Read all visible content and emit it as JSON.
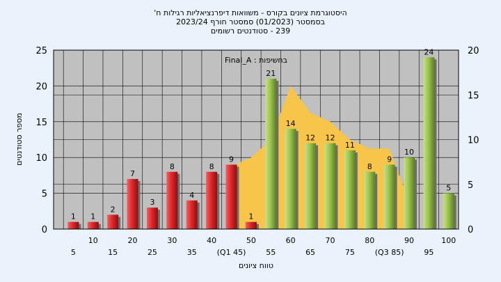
{
  "chart_data": {
    "type": "bar",
    "title_lines": [
      "היסטוגרמת ציונים בקורס - משוואות דיפרנציאליות רגילות ח'",
      "בסמסטר  (01/2023)  סמסטר חורף  2023/24",
      "239 - סטודנטים רשומים"
    ],
    "annotation": "Final_A : בחשיפות",
    "xlabel": "טווח ציונים",
    "ylabel": "מספר סטודנטים",
    "ylim": [
      0,
      25
    ],
    "yticks": [
      0,
      5,
      10,
      15,
      20,
      25
    ],
    "y2lim": [
      0,
      20
    ],
    "y2ticks": [
      0,
      5,
      10,
      15,
      20
    ],
    "grid": true,
    "x_tick_labels": [
      "5",
      "10",
      "15",
      "20",
      "25",
      "30",
      "35",
      "40",
      "(Q1 45)",
      "50",
      "55",
      "60",
      "65",
      "70",
      "75",
      "80",
      "(Q3 85)",
      "90",
      "95",
      "100"
    ],
    "categories": [
      5,
      10,
      15,
      20,
      25,
      30,
      35,
      40,
      45,
      50,
      55,
      60,
      65,
      70,
      75,
      80,
      85,
      90,
      95,
      100
    ],
    "values": [
      1,
      1,
      2,
      7,
      3,
      8,
      4,
      8,
      9,
      1,
      21,
      14,
      12,
      12,
      11,
      8,
      9,
      10,
      24,
      5
    ],
    "value_labels": [
      "1",
      "1",
      "2",
      "7",
      "3",
      "8",
      "4",
      "8",
      "9",
      "1",
      "21",
      "14",
      "12",
      "12",
      "11",
      "8",
      "9",
      "10",
      "24",
      "5"
    ],
    "bar_colors": [
      "red",
      "red",
      "red",
      "red",
      "red",
      "red",
      "red",
      "red",
      "red",
      "red",
      "green",
      "green",
      "green",
      "green",
      "green",
      "green",
      "green",
      "green",
      "green",
      "green"
    ],
    "area": {
      "x": [
        45,
        50,
        55,
        60,
        65,
        70,
        75,
        80,
        85,
        90
      ],
      "y": [
        7,
        8,
        10,
        16,
        13,
        12,
        10,
        9,
        9,
        3
      ],
      "axis": "right"
    },
    "colors": {
      "background": "#eaf3fb",
      "plot_bg": "#c0c0c0",
      "area": "#f7c54a",
      "red": "#e0262a",
      "green": "#9cc44d"
    }
  }
}
